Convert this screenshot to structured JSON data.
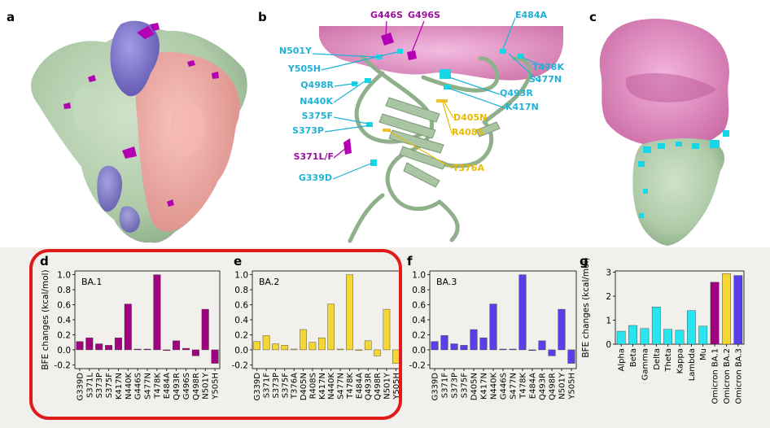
{
  "panels": {
    "a": "a",
    "b": "b",
    "c": "c",
    "d": "d",
    "e": "e",
    "f": "f",
    "g": "g"
  },
  "colors": {
    "spike": "#b9d3b4",
    "spike_dark": "#8fb08a",
    "chain_blue": "#7e74c9",
    "chain_pink": "#ec9f9a",
    "mutation_purple": "#b300b3",
    "ace2_pink": "#d97ab8",
    "cyan": "#18d6e6",
    "label_cyan": "#1fb2d6",
    "label_purple": "#9b119b",
    "label_yellow": "#e8b900",
    "ba1": "#a0037f",
    "ba2": "#f4d634",
    "ba3": "#5a3fe6",
    "g_cyan": "#27e6f0",
    "highlight": "#e01b1b"
  },
  "panel_b_labels": [
    {
      "text": "G446S",
      "color": "purple"
    },
    {
      "text": "G496S",
      "color": "purple"
    },
    {
      "text": "E484A",
      "color": "cyan"
    },
    {
      "text": "N501Y",
      "color": "cyan"
    },
    {
      "text": "T478K",
      "color": "cyan"
    },
    {
      "text": "Y505H",
      "color": "cyan"
    },
    {
      "text": "S477N",
      "color": "cyan"
    },
    {
      "text": "Q498R",
      "color": "cyan"
    },
    {
      "text": "Q493R",
      "color": "cyan"
    },
    {
      "text": "N440K",
      "color": "cyan"
    },
    {
      "text": "K417N",
      "color": "cyan"
    },
    {
      "text": "S375F",
      "color": "cyan"
    },
    {
      "text": "D405N",
      "color": "yellow"
    },
    {
      "text": "S373P",
      "color": "cyan"
    },
    {
      "text": "R408S",
      "color": "yellow"
    },
    {
      "text": "S371L/F",
      "color": "purple"
    },
    {
      "text": "T376A",
      "color": "yellow"
    },
    {
      "text": "G339D",
      "color": "cyan"
    }
  ],
  "chart_data": [
    {
      "panel": "d",
      "type": "bar",
      "series_name": "BA.1",
      "ylabel": "BFE changes (kcal/mol)",
      "ylim": [
        -0.25,
        1.05
      ],
      "yticks": [
        "1.0",
        "0.8",
        "0.6",
        "0.4",
        "0.2",
        "0.0",
        "-0.2"
      ],
      "categories": [
        "G339D",
        "S371L",
        "S373P",
        "S375F",
        "K417N",
        "N440K",
        "G446S",
        "S477N",
        "T478K",
        "E484A",
        "Q493R",
        "G496S",
        "Q498R",
        "N501Y",
        "Y505H"
      ],
      "values": [
        0.11,
        0.16,
        0.08,
        0.06,
        0.16,
        0.61,
        0.01,
        0.01,
        1.0,
        -0.01,
        0.12,
        0.02,
        -0.08,
        0.54,
        -0.18
      ],
      "color": "#a0037f"
    },
    {
      "panel": "e",
      "type": "bar",
      "series_name": "BA.2",
      "ylabel": "",
      "ylim": [
        -0.25,
        1.05
      ],
      "yticks": [
        "1.0",
        "0.8",
        "0.6",
        "0.4",
        "0.2",
        "0.0",
        "-0.2"
      ],
      "categories": [
        "G339D",
        "S371F",
        "S373P",
        "S375F",
        "T376A",
        "D405N",
        "R408S",
        "K417N",
        "N440K",
        "S477N",
        "T478K",
        "E484A",
        "Q493R",
        "Q498R",
        "N501Y",
        "Y505H"
      ],
      "values": [
        0.11,
        0.19,
        0.08,
        0.06,
        0.01,
        0.27,
        0.1,
        0.16,
        0.61,
        0.01,
        1.0,
        -0.01,
        0.12,
        -0.08,
        0.54,
        -0.18
      ],
      "color": "#f4d634"
    },
    {
      "panel": "f",
      "type": "bar",
      "series_name": "BA.3",
      "ylabel": "",
      "ylim": [
        -0.25,
        1.05
      ],
      "yticks": [
        "1.0",
        "0.8",
        "0.6",
        "0.4",
        "0.2",
        "0.0",
        "-0.2"
      ],
      "categories": [
        "G339D",
        "S371F",
        "S373P",
        "S375F",
        "D405N",
        "K417N",
        "N440K",
        "G446S",
        "S477N",
        "T478K",
        "E484A",
        "Q493R",
        "Q498R",
        "N501Y",
        "Y505H"
      ],
      "values": [
        0.11,
        0.19,
        0.08,
        0.06,
        0.27,
        0.16,
        0.61,
        0.01,
        0.01,
        1.0,
        -0.01,
        0.12,
        -0.08,
        0.54,
        -0.18
      ],
      "color": "#5a3fe6"
    },
    {
      "panel": "g",
      "type": "bar",
      "ylabel": "BFE changes (kcal/mol)",
      "ylim": [
        0,
        3.05
      ],
      "yticks": [
        "3",
        "2",
        "1",
        "0"
      ],
      "categories": [
        "Alpha",
        "Beta",
        "Gamma",
        "Delta",
        "Theta",
        "Kappa",
        "Lambda",
        "Mu",
        "Omicron BA.1",
        "Omicron BA.2",
        "Omicron BA.3"
      ],
      "values": [
        0.54,
        0.78,
        0.65,
        1.55,
        0.62,
        0.58,
        1.4,
        0.75,
        2.58,
        2.94,
        2.86
      ],
      "colors": [
        "#27e6f0",
        "#27e6f0",
        "#27e6f0",
        "#27e6f0",
        "#27e6f0",
        "#27e6f0",
        "#27e6f0",
        "#27e6f0",
        "#a0037f",
        "#f4d634",
        "#5a3fe6"
      ]
    }
  ]
}
